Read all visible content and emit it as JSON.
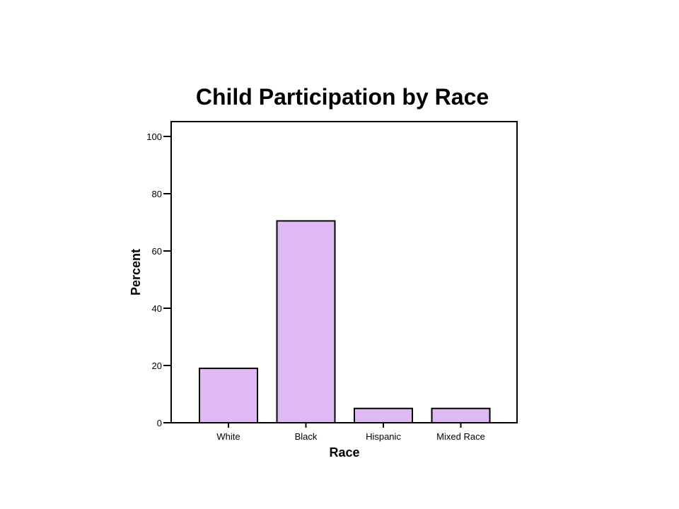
{
  "chart_data": {
    "type": "bar",
    "title": "Child Participation by Race",
    "xlabel": "Race",
    "ylabel": "Percent",
    "categories": [
      "White",
      "Black",
      "Hispanic",
      "Mixed Race"
    ],
    "values": [
      19,
      70.5,
      5,
      5
    ],
    "ylim": [
      0,
      100
    ],
    "yticks": [
      "0",
      "20",
      "40",
      "60",
      "80",
      "100"
    ],
    "grid": false,
    "legend": "none",
    "bar_color": "#dfbaf2",
    "bar_edge_color": "#000000"
  }
}
